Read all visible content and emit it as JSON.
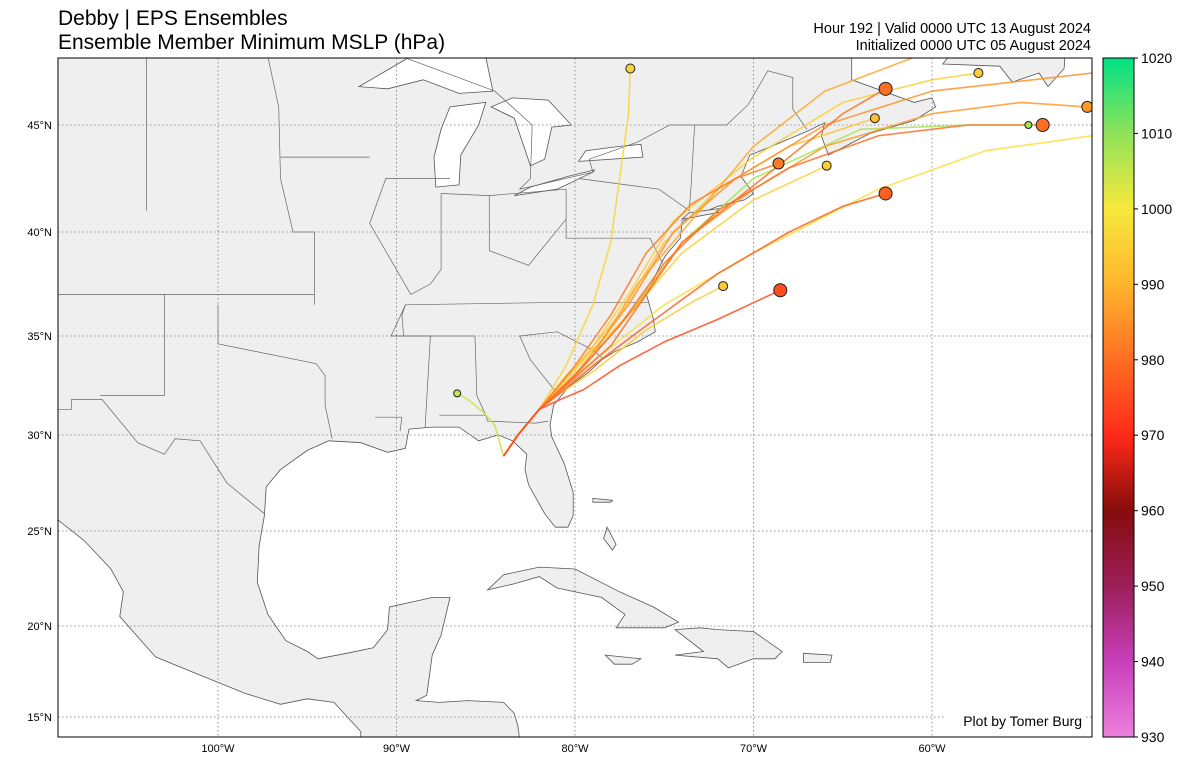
{
  "header": {
    "title_line1": "Debby | EPS Ensembles",
    "title_line2": "Ensemble Member Minimum MSLP (hPa)",
    "valid_line": "Hour 192 | Valid 0000 UTC 13 August 2024",
    "init_line": "Initialized 0000 UTC 05 August 2024"
  },
  "credit": "Plot by Tomer Burg",
  "map": {
    "lat_ticks": [
      {
        "value": 45,
        "label": "45°N"
      },
      {
        "value": 40,
        "label": "40°N"
      },
      {
        "value": 35,
        "label": "35°N"
      },
      {
        "value": 30,
        "label": "30°N"
      },
      {
        "value": 25,
        "label": "25°N"
      },
      {
        "value": 20,
        "label": "20°N"
      },
      {
        "value": 15,
        "label": "15°N"
      }
    ],
    "lon_ticks": [
      {
        "value": -100,
        "label": "100°W"
      },
      {
        "value": -90,
        "label": "90°W"
      },
      {
        "value": -80,
        "label": "80°W"
      },
      {
        "value": -70,
        "label": "70°W"
      },
      {
        "value": -60,
        "label": "60°W"
      }
    ],
    "land_color": "#efefef",
    "ocean_color": "#ffffff",
    "border_color": "#555555"
  },
  "colorbar": {
    "min": 930,
    "max": 1020,
    "tick_labels": [
      "1020",
      "1010",
      "1000",
      "990",
      "980",
      "970",
      "960",
      "950",
      "940",
      "930"
    ],
    "stops": [
      {
        "value": 930,
        "color": "#ec80dc"
      },
      {
        "value": 940,
        "color": "#c83fba"
      },
      {
        "value": 950,
        "color": "#9c1f5a"
      },
      {
        "value": 960,
        "color": "#860c0c"
      },
      {
        "value": 970,
        "color": "#ff2a1a"
      },
      {
        "value": 980,
        "color": "#ff6e22"
      },
      {
        "value": 990,
        "color": "#ffb52e"
      },
      {
        "value": 1000,
        "color": "#f7e93c"
      },
      {
        "value": 1010,
        "color": "#8fe25a"
      },
      {
        "value": 1020,
        "color": "#00e184"
      }
    ]
  },
  "members": [
    {
      "mslp": 975,
      "track": [
        [
          -84,
          28.9
        ],
        [
          -83.2,
          30
        ],
        [
          -82,
          31.3
        ],
        [
          -80.8,
          31.8
        ],
        [
          -79.5,
          32.3
        ],
        [
          -77.5,
          33.5
        ],
        [
          -75,
          34.7
        ],
        [
          -72,
          35.8
        ],
        [
          -70,
          36.6
        ],
        [
          -68.5,
          37.2
        ]
      ]
    },
    {
      "mslp": 978,
      "track": [
        [
          -84,
          28.9
        ],
        [
          -83.2,
          30
        ],
        [
          -82,
          31.3
        ],
        [
          -81,
          32
        ],
        [
          -79,
          33.5
        ],
        [
          -76,
          35.5
        ],
        [
          -72,
          38
        ],
        [
          -68,
          40
        ],
        [
          -65,
          41.2
        ],
        [
          -62.6,
          41.8
        ]
      ]
    },
    {
      "mslp": 980,
      "track": [
        [
          -84,
          28.9
        ],
        [
          -83.2,
          30
        ],
        [
          -82,
          31.3
        ],
        [
          -80.5,
          32.5
        ],
        [
          -78,
          34.5
        ],
        [
          -76,
          37
        ],
        [
          -74,
          39.5
        ],
        [
          -71,
          41.5
        ],
        [
          -68,
          43.5
        ],
        [
          -65,
          45.5
        ],
        [
          -62.6,
          46.6
        ]
      ]
    },
    {
      "mslp": 980,
      "track": [
        [
          -84,
          28.9
        ],
        [
          -83.2,
          30
        ],
        [
          -82,
          31.3
        ],
        [
          -80,
          33
        ],
        [
          -77.5,
          35.5
        ],
        [
          -75,
          38.5
        ],
        [
          -72,
          41
        ],
        [
          -68,
          43
        ],
        [
          -63,
          44.5
        ],
        [
          -58,
          45
        ],
        [
          -53.8,
          45
        ]
      ]
    },
    {
      "mslp": 986,
      "track": [
        [
          -84,
          28.9
        ],
        [
          -83.2,
          30
        ],
        [
          -82,
          31.3
        ],
        [
          -79.5,
          33.5
        ],
        [
          -76.5,
          36.5
        ],
        [
          -74,
          39.5
        ],
        [
          -70,
          42
        ],
        [
          -66,
          44
        ],
        [
          -60,
          45.5
        ],
        [
          -55,
          46
        ],
        [
          -51.3,
          45.8
        ]
      ]
    },
    {
      "mslp": 982,
      "track": [
        [
          -84,
          28.9
        ],
        [
          -83.2,
          30
        ],
        [
          -82,
          31.3
        ],
        [
          -80,
          33.5
        ],
        [
          -78,
          36
        ],
        [
          -76,
          39
        ],
        [
          -73.5,
          41.3
        ],
        [
          -71,
          42.5
        ],
        [
          -68.6,
          43.2
        ]
      ]
    },
    {
      "mslp": 995,
      "track": [
        [
          -84,
          28.9
        ],
        [
          -83.2,
          30
        ],
        [
          -82,
          31.3
        ],
        [
          -80.5,
          33
        ],
        [
          -77,
          36
        ],
        [
          -74,
          39
        ],
        [
          -70,
          41.5
        ],
        [
          -65.9,
          43.1
        ]
      ]
    },
    {
      "mslp": 992,
      "track": [
        [
          -84,
          28.9
        ],
        [
          -83.2,
          30
        ],
        [
          -82,
          31.3
        ],
        [
          -80.2,
          33.2
        ],
        [
          -77.5,
          36
        ],
        [
          -75,
          39.5
        ],
        [
          -72,
          42
        ],
        [
          -68,
          44
        ],
        [
          -63.2,
          45.3
        ]
      ]
    },
    {
      "mslp": 995,
      "track": [
        [
          -84,
          28.9
        ],
        [
          -83.2,
          30
        ],
        [
          -82,
          31.3
        ],
        [
          -79.5,
          33.8
        ],
        [
          -77,
          37
        ],
        [
          -74.5,
          40.5
        ],
        [
          -70,
          43.5
        ],
        [
          -65,
          46
        ],
        [
          -60,
          47
        ],
        [
          -57.4,
          47.3
        ]
      ]
    },
    {
      "mslp": 994,
      "track": [
        [
          -84,
          28.9
        ],
        [
          -83.2,
          30
        ],
        [
          -82,
          31.3
        ],
        [
          -81,
          32
        ],
        [
          -79,
          33.2
        ],
        [
          -76,
          35.3
        ],
        [
          -73.5,
          36.6
        ],
        [
          -71.7,
          37.4
        ]
      ]
    },
    {
      "mslp": 996,
      "track": [
        [
          -84,
          28.9
        ],
        [
          -83.2,
          30
        ],
        [
          -82,
          31.3
        ],
        [
          -80.5,
          33.5
        ],
        [
          -79,
          36.5
        ],
        [
          -78,
          39.5
        ],
        [
          -77.5,
          42.5
        ],
        [
          -77,
          45.5
        ],
        [
          -76.9,
          47.5
        ]
      ]
    },
    {
      "mslp": 1008,
      "track": [
        [
          -84,
          28.9
        ],
        [
          -83.2,
          30
        ],
        [
          -82,
          31.3
        ],
        [
          -80,
          33
        ],
        [
          -77,
          36
        ],
        [
          -74,
          39.5
        ],
        [
          -70,
          42.5
        ],
        [
          -64,
          44.8
        ],
        [
          -58,
          45
        ],
        [
          -54.6,
          45
        ]
      ]
    },
    {
      "mslp": 1005,
      "track": [
        [
          -84,
          28.9
        ],
        [
          -84.5,
          30.5
        ],
        [
          -85.2,
          31.2
        ],
        [
          -86,
          31.8
        ],
        [
          -86.6,
          32.1
        ]
      ]
    },
    {
      "mslp": 985,
      "track": [
        [
          -84,
          28.9
        ],
        [
          -83.2,
          30
        ],
        [
          -82,
          31.3
        ],
        [
          -80,
          33
        ],
        [
          -77,
          36.5
        ],
        [
          -74.5,
          40
        ],
        [
          -71,
          42.5
        ],
        [
          -66,
          45
        ],
        [
          -60,
          46.5
        ],
        [
          -51,
          47.3
        ]
      ]
    },
    {
      "mslp": 988,
      "track": [
        [
          -84,
          28.9
        ],
        [
          -83.2,
          30
        ],
        [
          -82,
          31.3
        ],
        [
          -79,
          34
        ],
        [
          -76.5,
          37.5
        ],
        [
          -73,
          41
        ],
        [
          -70,
          44
        ],
        [
          -66,
          46.5
        ],
        [
          -60,
          48.3
        ]
      ]
    },
    {
      "mslp": 998,
      "track": [
        [
          -84,
          28.9
        ],
        [
          -83.2,
          30
        ],
        [
          -82,
          31.3
        ],
        [
          -80,
          33
        ],
        [
          -75,
          36.5
        ],
        [
          -70,
          39
        ],
        [
          -63,
          42
        ],
        [
          -57,
          43.8
        ],
        [
          -51,
          44.5
        ]
      ]
    }
  ],
  "end_markers": [
    {
      "lon": -76.9,
      "lat": 47.5,
      "mslp": 996
    },
    {
      "lon": -62.6,
      "lat": 46.6,
      "mslp": 980
    },
    {
      "lon": -57.4,
      "lat": 47.3,
      "mslp": 995
    },
    {
      "lon": -63.2,
      "lat": 45.3,
      "mslp": 992
    },
    {
      "lon": -51.3,
      "lat": 45.8,
      "mslp": 986
    },
    {
      "lon": -53.8,
      "lat": 45.0,
      "mslp": 980
    },
    {
      "lon": -54.6,
      "lat": 45.0,
      "mslp": 1008
    },
    {
      "lon": -68.6,
      "lat": 43.2,
      "mslp": 982
    },
    {
      "lon": -65.9,
      "lat": 43.1,
      "mslp": 995
    },
    {
      "lon": -62.6,
      "lat": 41.8,
      "mslp": 978
    },
    {
      "lon": -71.7,
      "lat": 37.4,
      "mslp": 994
    },
    {
      "lon": -68.5,
      "lat": 37.2,
      "mslp": 975
    },
    {
      "lon": -86.6,
      "lat": 32.1,
      "mslp": 1005
    }
  ]
}
